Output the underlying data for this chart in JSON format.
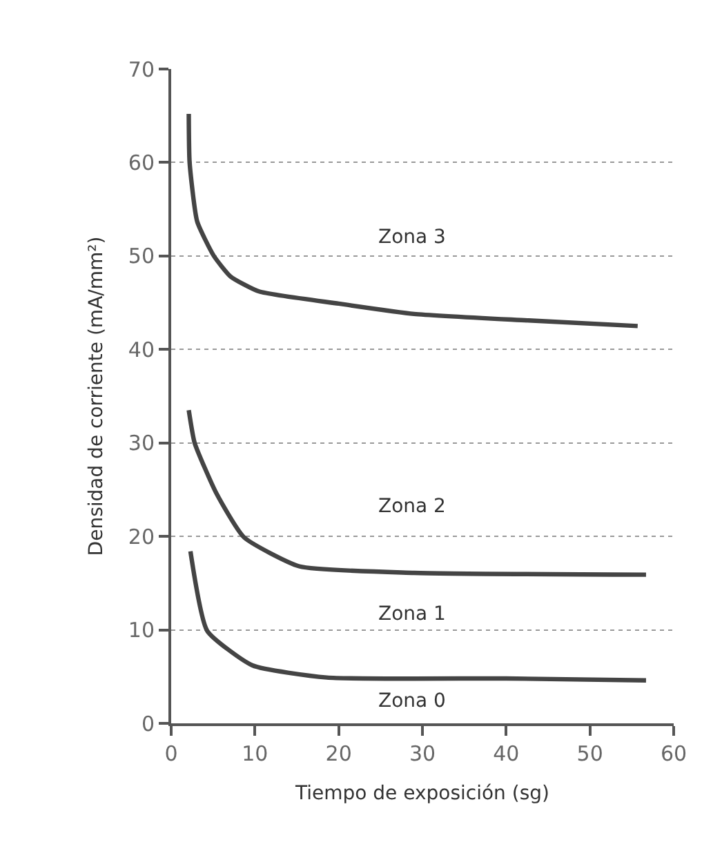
{
  "chart_data": {
    "type": "line",
    "xlabel": "Tiempo de exposición (sg)",
    "ylabel": "Densidad de corriente (mA/mm²)",
    "xlim": [
      0,
      60
    ],
    "xticks": [
      0,
      10,
      20,
      30,
      40,
      50,
      60
    ],
    "ylim": [
      0,
      70
    ],
    "yticks": [
      0,
      10,
      20,
      30,
      40,
      50,
      60,
      70
    ],
    "grid": "y",
    "marker": "none",
    "line_style": "solid",
    "series": [
      {
        "color": "#444444",
        "x": [
          2.1,
          2.2,
          3.1,
          5.1,
          7.1,
          10.5,
          20,
          29,
          42.7,
          55.7
        ],
        "values": [
          65.2,
          60,
          53.7,
          50,
          47.8,
          46.2,
          44.9,
          43.8,
          43.1,
          42.5
        ]
      },
      {
        "color": "#444444",
        "x": [
          2.1,
          2.8,
          5.4,
          8.7,
          15.3,
          29,
          56.7
        ],
        "values": [
          33.5,
          30,
          24.6,
          19.9,
          16.8,
          16.1,
          15.9
        ]
      },
      {
        "color": "#444444",
        "x": [
          2.3,
          4.3,
          9.7,
          18.6,
          40,
          56.7
        ],
        "values": [
          18.4,
          9.9,
          6.2,
          4.9,
          4.8,
          4.6
        ]
      }
    ],
    "annotations": [
      "Zona 3",
      "Zona 2",
      "Zona 1",
      "Zona 0"
    ]
  }
}
